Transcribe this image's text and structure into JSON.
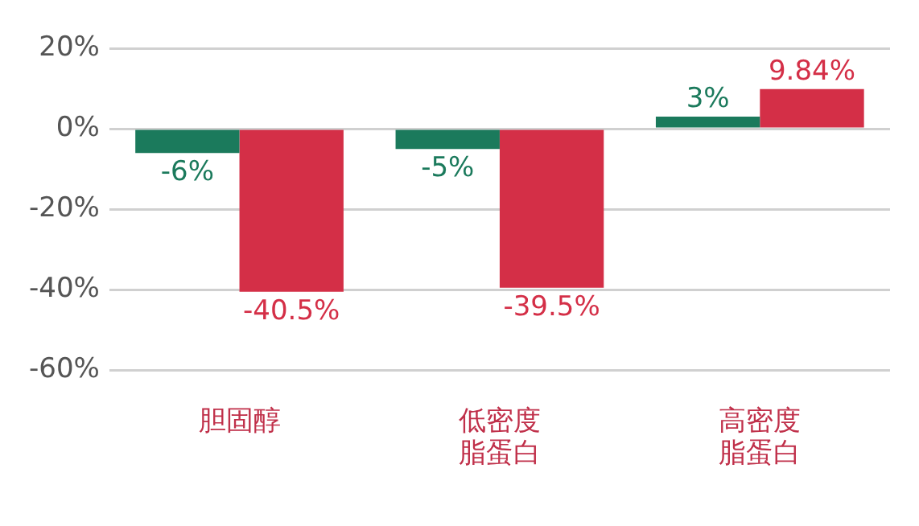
{
  "chart_data": {
    "type": "bar",
    "categories": [
      "胆固醇",
      "低密度脂蛋白",
      "高密度脂蛋白"
    ],
    "series": [
      {
        "color": "#1b7a5c",
        "values": [
          -6,
          -5,
          3
        ],
        "value_labels": [
          "-6%",
          "-5%",
          "3%"
        ]
      },
      {
        "color": "#d42f47",
        "values": [
          -40.5,
          -39.5,
          9.84
        ],
        "value_labels": [
          "-40.5%",
          "-39.5%",
          "9.84%"
        ]
      }
    ],
    "ylim": [
      -60,
      20
    ],
    "yticks": [
      {
        "value": 20,
        "label": "20%"
      },
      {
        "value": 0,
        "label": "0%"
      },
      {
        "value": -20,
        "label": "-20%"
      },
      {
        "value": -40,
        "label": "-40%"
      },
      {
        "value": -60,
        "label": "-60%"
      }
    ],
    "grid": "y",
    "legend": false
  }
}
